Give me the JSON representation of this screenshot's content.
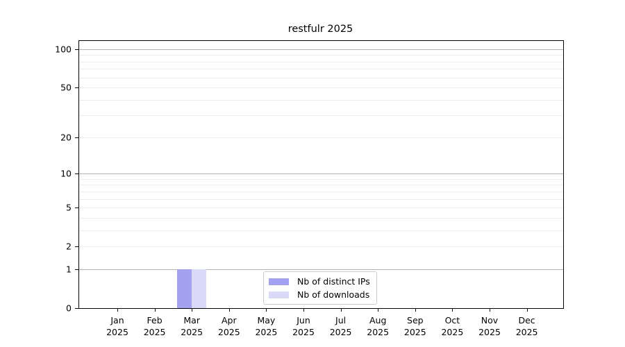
{
  "chart_data": {
    "type": "bar",
    "title": "restfulr 2025",
    "x": {
      "months": [
        "Jan",
        "Feb",
        "Mar",
        "Apr",
        "May",
        "Jun",
        "Jul",
        "Aug",
        "Sep",
        "Oct",
        "Nov",
        "Dec"
      ],
      "year": "2025"
    },
    "series": [
      {
        "name": "Nb of distinct IPs",
        "color": "#a2a2f0",
        "values": [
          0,
          0,
          1,
          0,
          0,
          0,
          0,
          0,
          0,
          0,
          0,
          0
        ]
      },
      {
        "name": "Nb of downloads",
        "color": "#dadaf8",
        "values": [
          0,
          0,
          1,
          0,
          0,
          0,
          0,
          0,
          0,
          0,
          0,
          0
        ]
      }
    ],
    "y_axis": {
      "scale": "log1p",
      "ylim": [
        0,
        116
      ],
      "ticks": [
        0,
        1,
        2,
        5,
        10,
        20,
        50,
        100
      ],
      "major_gridlines": [
        1,
        10,
        100
      ],
      "minor_gridlines": [
        2,
        3,
        4,
        5,
        6,
        7,
        8,
        9,
        20,
        30,
        40,
        50,
        60,
        70,
        80,
        90
      ]
    },
    "legend": {
      "position": "bottom-center",
      "entries": [
        "Nb of distinct IPs",
        "Nb of downloads"
      ]
    },
    "grid": true,
    "colors": {
      "major_grid": "#b3b3b3",
      "minor_grid": "#ececec",
      "frame": "#000000",
      "background": "#ffffff"
    }
  }
}
